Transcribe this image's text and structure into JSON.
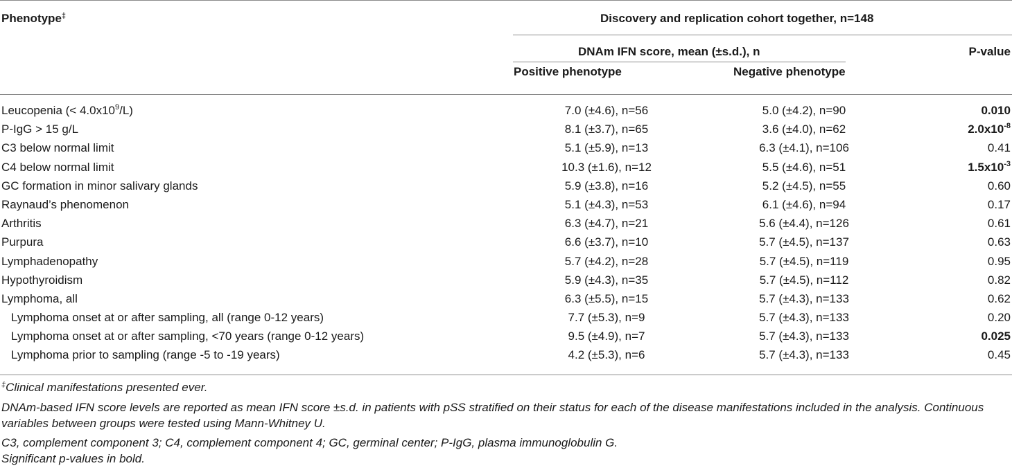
{
  "header": {
    "phenotype": "Phenotype",
    "phenotype_mark": "‡",
    "cohort": "Discovery and replication cohort together, n=148",
    "score_group": "DNAm IFN score, mean (±s.d.), n",
    "positive": "Positive phenotype",
    "negative": "Negative phenotype",
    "pvalue": "P-value"
  },
  "rows": [
    {
      "label": "Leucopenia (< 4.0x10",
      "label_sup": "9",
      "label_tail": "/L)",
      "indent": false,
      "positive": "7.0 (±4.6), n=56",
      "negative": "5.0 (±4.2), n=90",
      "p": "0.010",
      "p_sup": "",
      "bold": true
    },
    {
      "label": "P-IgG > 15 g/L",
      "label_sup": "",
      "label_tail": "",
      "indent": false,
      "positive": "8.1 (±3.7), n=65",
      "negative": "3.6 (±4.0), n=62",
      "p": "2.0x10",
      "p_sup": "-8",
      "bold": true
    },
    {
      "label": "C3 below normal limit",
      "label_sup": "",
      "label_tail": "",
      "indent": false,
      "positive": "5.1 (±5.9), n=13",
      "negative": "6.3 (±4.1), n=106",
      "p": "0.41",
      "p_sup": "",
      "bold": false
    },
    {
      "label": "C4 below normal limit",
      "label_sup": "",
      "label_tail": "",
      "indent": false,
      "positive": "10.3 (±1.6), n=12",
      "negative": "5.5 (±4.6), n=51",
      "p": "1.5x10",
      "p_sup": "-3",
      "bold": true
    },
    {
      "label": "GC formation in minor salivary glands",
      "label_sup": "",
      "label_tail": "",
      "indent": false,
      "positive": "5.9 (±3.8), n=16",
      "negative": "5.2 (±4.5), n=55",
      "p": "0.60",
      "p_sup": "",
      "bold": false
    },
    {
      "label": "Raynaud’s phenomenon",
      "label_sup": "",
      "label_tail": "",
      "indent": false,
      "positive": "5.1 (±4.3), n=53",
      "negative": "6.1 (±4.6), n=94",
      "p": "0.17",
      "p_sup": "",
      "bold": false
    },
    {
      "label": "Arthritis",
      "label_sup": "",
      "label_tail": "",
      "indent": false,
      "positive": "6.3 (±4.7), n=21",
      "negative": "5.6 (±4.4), n=126",
      "p": "0.61",
      "p_sup": "",
      "bold": false
    },
    {
      "label": "Purpura",
      "label_sup": "",
      "label_tail": "",
      "indent": false,
      "positive": "6.6 (±3.7), n=10",
      "negative": "5.7 (±4.5), n=137",
      "p": "0.63",
      "p_sup": "",
      "bold": false
    },
    {
      "label": "Lymphadenopathy",
      "label_sup": "",
      "label_tail": "",
      "indent": false,
      "positive": "5.7 (±4.2), n=28",
      "negative": "5.7 (±4.5), n=119",
      "p": "0.95",
      "p_sup": "",
      "bold": false
    },
    {
      "label": "Hypothyroidism",
      "label_sup": "",
      "label_tail": "",
      "indent": false,
      "positive": "5.9 (±4.3), n=35",
      "negative": "5.7 (±4.5), n=112",
      "p": "0.82",
      "p_sup": "",
      "bold": false
    },
    {
      "label": "Lymphoma, all",
      "label_sup": "",
      "label_tail": "",
      "indent": false,
      "positive": "6.3 (±5.5), n=15",
      "negative": "5.7 (±4.3), n=133",
      "p": "0.62",
      "p_sup": "",
      "bold": false
    },
    {
      "label": "Lymphoma onset at or after sampling, all (range 0-12 years)",
      "label_sup": "",
      "label_tail": "",
      "indent": true,
      "positive": "7.7 (±5.3), n=9",
      "negative": "5.7 (±4.3), n=133",
      "p": "0.20",
      "p_sup": "",
      "bold": false
    },
    {
      "label": "Lymphoma onset at or after sampling, <70 years (range 0-12 years)",
      "label_sup": "",
      "label_tail": "",
      "indent": true,
      "positive": "9.5 (±4.9), n=7",
      "negative": "5.7 (±4.3), n=133",
      "p": "0.025",
      "p_sup": "",
      "bold": true
    },
    {
      "label": "Lymphoma prior to sampling (range -5 to -19 years)",
      "label_sup": "",
      "label_tail": "",
      "indent": true,
      "positive": "4.2 (±5.3), n=6",
      "negative": "5.7 (±4.3), n=133",
      "p": "0.45",
      "p_sup": "",
      "bold": false
    }
  ],
  "footnotes": {
    "clinical_mark": "‡",
    "clinical": "Clinical manifestations presented ever.",
    "method_line1": "DNAm-based IFN score levels are reported as mean IFN score ±s.d. in patients with pSS stratified on their status for each of the disease manifestations included in the analysis. Continuous",
    "method_line2": "variables between groups were tested using Mann-Whitney U.",
    "abbrev": "C3, complement component 3; C4, complement component 4; GC, germinal center; P-IgG, plasma immunoglobulin G.",
    "significance": "Significant p-values in bold."
  }
}
